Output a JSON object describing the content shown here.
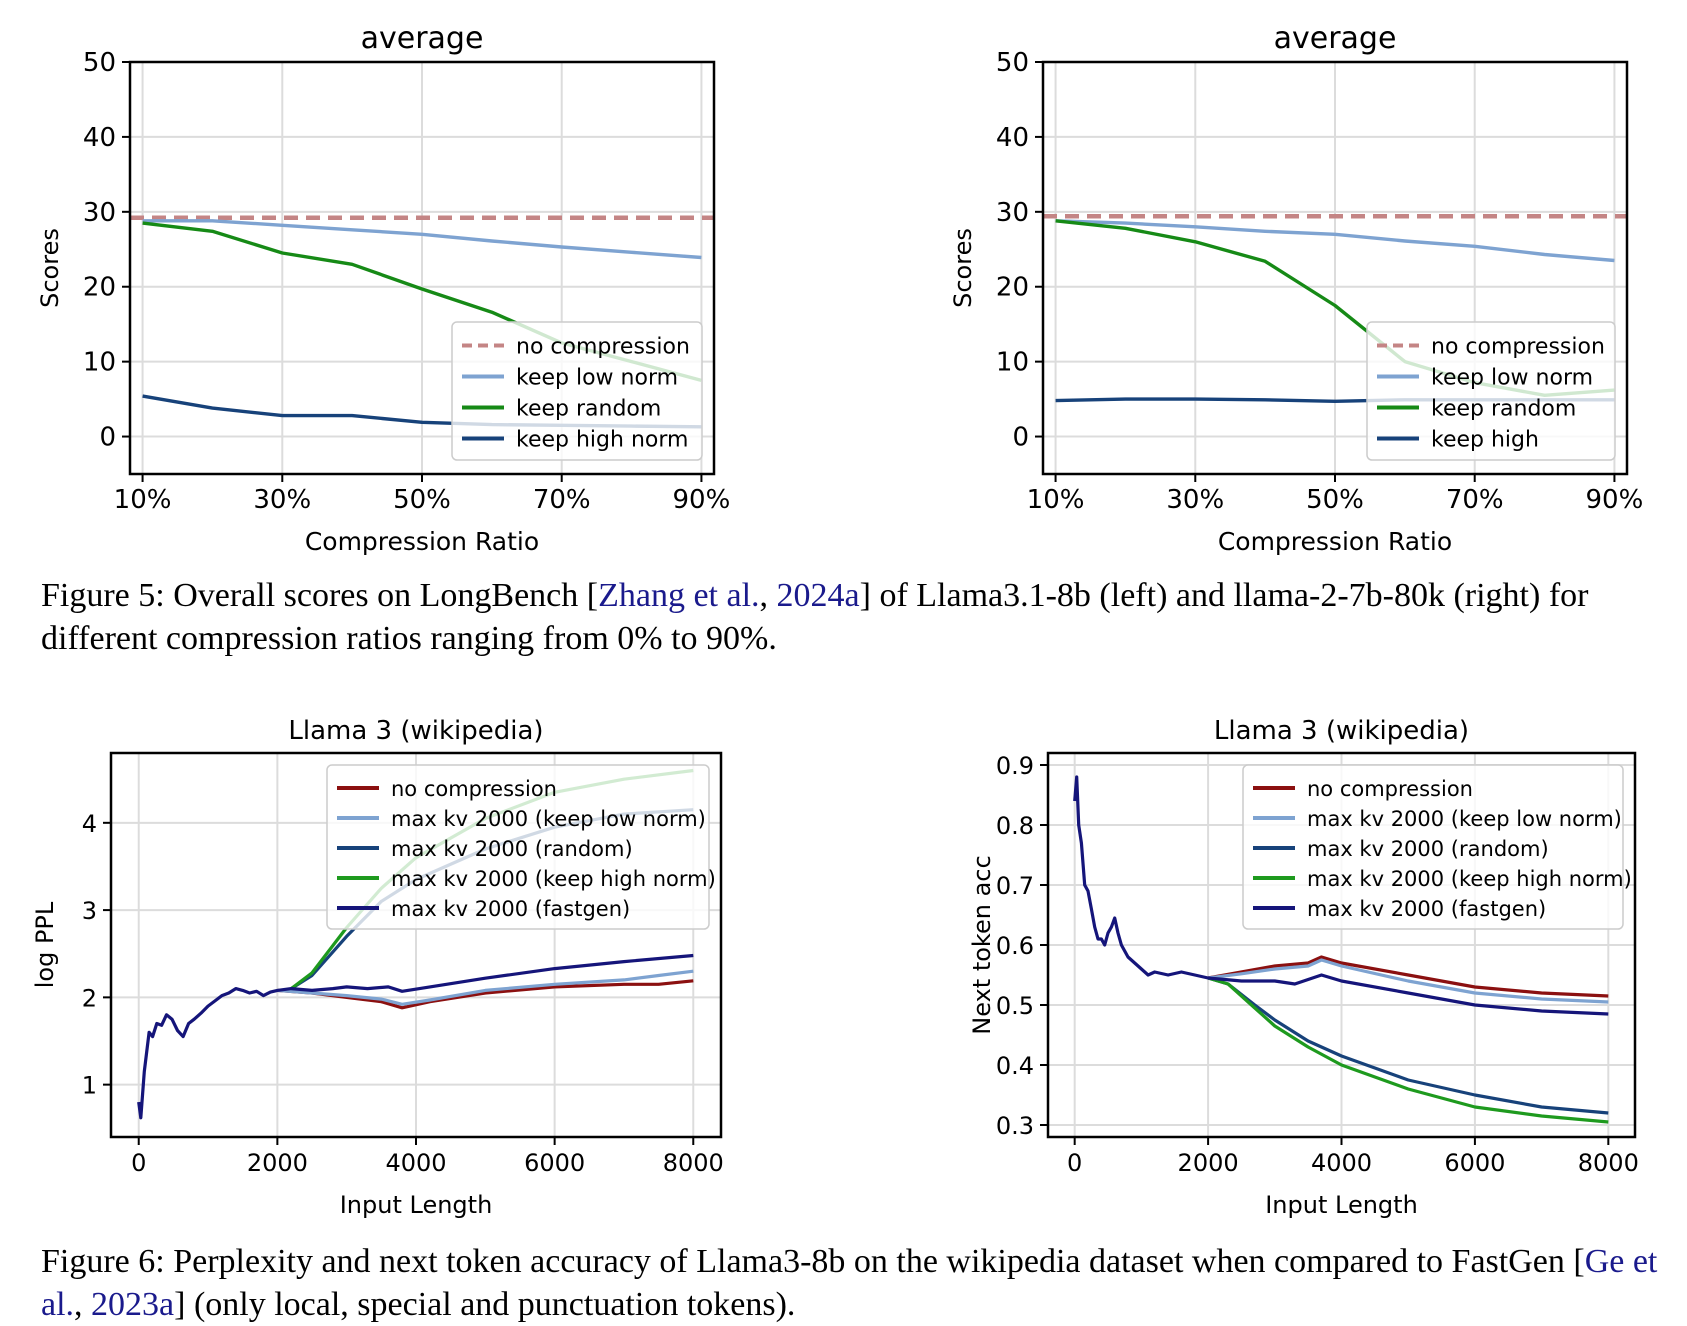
{
  "figure5": {
    "caption": {
      "pre": "Figure 5: Overall scores on LongBench [",
      "cite_author": "Zhang et al.",
      "cite_sep": ", ",
      "cite_year": "2024a",
      "post": "] of Llama3.1-8b (left) and llama-2-7b-80k (right) for different compression ratios ranging from 0% to 90%."
    }
  },
  "figure6": {
    "caption": {
      "pre": "Figure 6: Perplexity and next token accuracy of Llama3-8b on the wikipedia dataset when compared to FastGen [",
      "cite_author": "Ge et al.",
      "cite_sep": ", ",
      "cite_year": "2023a",
      "post": "] (only local, special and punctuation tokens)."
    }
  },
  "colors": {
    "no_compression": "#c48585",
    "low_norm": "#7ea3d1",
    "random": "#168a16",
    "high_norm": "#17427a",
    "dark_red": "#8b1010",
    "fastgen": "#15157a",
    "high_norm_green": "#1e9a1e"
  },
  "chart_data": [
    {
      "type": "line",
      "title": "average",
      "xlabel": "Compression Ratio",
      "ylabel": "Scores",
      "xlim": [
        8.2,
        91.8
      ],
      "ylim": [
        -5,
        50
      ],
      "xticks": [
        10,
        30,
        50,
        70,
        90
      ],
      "xtick_labels": [
        "10%",
        "30%",
        "50%",
        "70%",
        "90%"
      ],
      "yticks": [
        0,
        10,
        20,
        30,
        40,
        50
      ],
      "grid": true,
      "legend": "lower-right",
      "series": [
        {
          "name": "no compression",
          "style": "dashed",
          "color": "#c48585",
          "x": [
            8.2,
            91.8
          ],
          "y": [
            29.2,
            29.2
          ]
        },
        {
          "name": "keep low norm",
          "color": "#7ea3d1",
          "x": [
            10,
            20,
            30,
            40,
            50,
            60,
            70,
            80,
            90
          ],
          "y": [
            28.8,
            28.8,
            28.2,
            27.6,
            27,
            26.1,
            25.3,
            24.6,
            23.9
          ]
        },
        {
          "name": "keep random",
          "color": "#168a16",
          "x": [
            10,
            20,
            30,
            40,
            50,
            60,
            70,
            80,
            90
          ],
          "y": [
            28.5,
            27.4,
            24.5,
            23,
            19.7,
            16.6,
            12.5,
            10,
            7.5
          ]
        },
        {
          "name": "keep high norm",
          "color": "#17427a",
          "x": [
            10,
            20,
            30,
            40,
            50,
            60,
            70,
            80,
            90
          ],
          "y": [
            5.4,
            3.8,
            2.8,
            2.8,
            1.9,
            1.6,
            1.5,
            1.4,
            1.3
          ]
        }
      ]
    },
    {
      "type": "line",
      "title": "average",
      "xlabel": "Compression Ratio",
      "ylabel": "Scores",
      "xlim": [
        8.2,
        91.8
      ],
      "ylim": [
        -5,
        50
      ],
      "xticks": [
        10,
        30,
        50,
        70,
        90
      ],
      "xtick_labels": [
        "10%",
        "30%",
        "50%",
        "70%",
        "90%"
      ],
      "yticks": [
        0,
        10,
        20,
        30,
        40,
        50
      ],
      "grid": true,
      "legend": "lower-right",
      "series": [
        {
          "name": "no compression",
          "style": "dashed",
          "color": "#c48585",
          "x": [
            8.2,
            91.8
          ],
          "y": [
            29.4,
            29.4
          ]
        },
        {
          "name": "keep low norm",
          "color": "#7ea3d1",
          "x": [
            10,
            20,
            30,
            40,
            50,
            60,
            70,
            80,
            90
          ],
          "y": [
            28.8,
            28.5,
            28,
            27.4,
            27,
            26.1,
            25.4,
            24.3,
            23.5
          ]
        },
        {
          "name": "keep random",
          "color": "#168a16",
          "x": [
            10,
            20,
            30,
            40,
            50,
            60,
            70,
            80,
            90
          ],
          "y": [
            28.8,
            27.8,
            26,
            23.4,
            17.5,
            10,
            7.2,
            5.5,
            6.2
          ]
        },
        {
          "name": "keep high",
          "color": "#17427a",
          "x": [
            10,
            20,
            30,
            40,
            50,
            60,
            70,
            80,
            90
          ],
          "y": [
            4.8,
            5,
            5,
            4.9,
            4.7,
            4.9,
            4.9,
            4.9,
            4.9
          ]
        }
      ]
    },
    {
      "type": "line",
      "title": "Llama 3 (wikipedia)",
      "xlabel": "Input Length",
      "ylabel": "log PPL",
      "xlim": [
        -400,
        8400
      ],
      "ylim": [
        0.4,
        4.8
      ],
      "xticks": [
        0,
        2000,
        4000,
        6000,
        8000
      ],
      "yticks": [
        1,
        2,
        3,
        4
      ],
      "grid": true,
      "legend": "upper-right",
      "series": [
        {
          "name": "no compression",
          "color": "#8b1010",
          "x": [
            2000,
            2500,
            3000,
            3500,
            3800,
            4200,
            5000,
            6000,
            7000,
            7500,
            8000
          ],
          "y": [
            2.08,
            2.05,
            2.0,
            1.95,
            1.88,
            1.95,
            2.05,
            2.12,
            2.15,
            2.15,
            2.19
          ]
        },
        {
          "name": "max kv 2000 (keep low norm)",
          "color": "#7ea3d1",
          "x": [
            2000,
            2500,
            3000,
            3500,
            3800,
            4200,
            5000,
            6000,
            7000,
            7500,
            8000
          ],
          "y": [
            2.08,
            2.05,
            2.02,
            1.98,
            1.92,
            1.97,
            2.08,
            2.15,
            2.2,
            2.25,
            2.3
          ]
        },
        {
          "name": "max kv 2000 (random)",
          "color": "#17427a",
          "x": [
            2200,
            2500,
            3000,
            3500,
            4000,
            5000,
            6000,
            7000,
            8000
          ],
          "y": [
            2.1,
            2.25,
            2.7,
            3.1,
            3.35,
            3.7,
            3.95,
            4.1,
            4.15
          ]
        },
        {
          "name": "max kv 2000 (keep high norm)",
          "color": "#1e9a1e",
          "x": [
            2200,
            2500,
            3000,
            3500,
            4000,
            5000,
            6000,
            7000,
            8000
          ],
          "y": [
            2.1,
            2.28,
            2.8,
            3.25,
            3.6,
            4.05,
            4.35,
            4.5,
            4.6
          ]
        },
        {
          "name": "max kv 2000 (fastgen)",
          "color": "#15157a",
          "x": [
            0,
            30,
            80,
            150,
            200,
            260,
            330,
            400,
            480,
            560,
            640,
            720,
            800,
            900,
            1000,
            1100,
            1200,
            1300,
            1400,
            1500,
            1600,
            1700,
            1800,
            1900,
            2000,
            2200,
            2500,
            2800,
            3000,
            3300,
            3600,
            3800,
            4200,
            5000,
            6000,
            7000,
            8000
          ],
          "y": [
            0.8,
            0.62,
            1.15,
            1.6,
            1.55,
            1.7,
            1.68,
            1.8,
            1.75,
            1.62,
            1.55,
            1.7,
            1.75,
            1.82,
            1.9,
            1.96,
            2.02,
            2.05,
            2.1,
            2.08,
            2.05,
            2.07,
            2.02,
            2.06,
            2.08,
            2.1,
            2.08,
            2.1,
            2.12,
            2.1,
            2.12,
            2.07,
            2.12,
            2.22,
            2.33,
            2.41,
            2.48
          ]
        }
      ]
    },
    {
      "type": "line",
      "title": "Llama 3 (wikipedia)",
      "xlabel": "Input Length",
      "ylabel": "Next token acc",
      "xlim": [
        -400,
        8400
      ],
      "ylim": [
        0.28,
        0.92
      ],
      "xticks": [
        0,
        2000,
        4000,
        6000,
        8000
      ],
      "yticks": [
        0.3,
        0.4,
        0.5,
        0.6,
        0.7,
        0.8,
        0.9
      ],
      "grid": true,
      "legend": "upper-right",
      "series": [
        {
          "name": "no compression",
          "color": "#8b1010",
          "x": [
            2000,
            2500,
            3000,
            3500,
            3700,
            4000,
            5000,
            6000,
            7000,
            8000
          ],
          "y": [
            0.545,
            0.555,
            0.565,
            0.57,
            0.58,
            0.57,
            0.55,
            0.53,
            0.52,
            0.515
          ]
        },
        {
          "name": "max kv 2000 (keep low norm)",
          "color": "#7ea3d1",
          "x": [
            2000,
            2500,
            3000,
            3500,
            3700,
            4000,
            5000,
            6000,
            7000,
            8000
          ],
          "y": [
            0.545,
            0.552,
            0.56,
            0.565,
            0.575,
            0.565,
            0.54,
            0.52,
            0.51,
            0.505
          ]
        },
        {
          "name": "max kv 2000 (random)",
          "color": "#17427a",
          "x": [
            2000,
            2300,
            2700,
            3000,
            3500,
            4000,
            5000,
            6000,
            7000,
            8000
          ],
          "y": [
            0.545,
            0.535,
            0.5,
            0.475,
            0.44,
            0.415,
            0.375,
            0.35,
            0.33,
            0.32
          ]
        },
        {
          "name": "max kv 2000 (keep high norm)",
          "color": "#1e9a1e",
          "x": [
            2000,
            2300,
            2700,
            3000,
            3500,
            4000,
            5000,
            6000,
            7000,
            8000
          ],
          "y": [
            0.545,
            0.535,
            0.495,
            0.465,
            0.43,
            0.4,
            0.36,
            0.33,
            0.315,
            0.305
          ]
        },
        {
          "name": "max kv 2000 (fastgen)",
          "color": "#15157a",
          "x": [
            0,
            30,
            60,
            100,
            150,
            200,
            250,
            300,
            350,
            400,
            450,
            500,
            550,
            600,
            650,
            700,
            800,
            900,
            1000,
            1100,
            1200,
            1400,
            1600,
            1800,
            2000,
            2500,
            3000,
            3300,
            3700,
            4000,
            5000,
            6000,
            7000,
            8000
          ],
          "y": [
            0.84,
            0.88,
            0.8,
            0.77,
            0.7,
            0.69,
            0.66,
            0.63,
            0.61,
            0.61,
            0.6,
            0.62,
            0.63,
            0.645,
            0.62,
            0.6,
            0.58,
            0.57,
            0.56,
            0.55,
            0.555,
            0.55,
            0.555,
            0.55,
            0.545,
            0.54,
            0.54,
            0.535,
            0.55,
            0.54,
            0.52,
            0.5,
            0.49,
            0.485
          ]
        }
      ]
    }
  ]
}
